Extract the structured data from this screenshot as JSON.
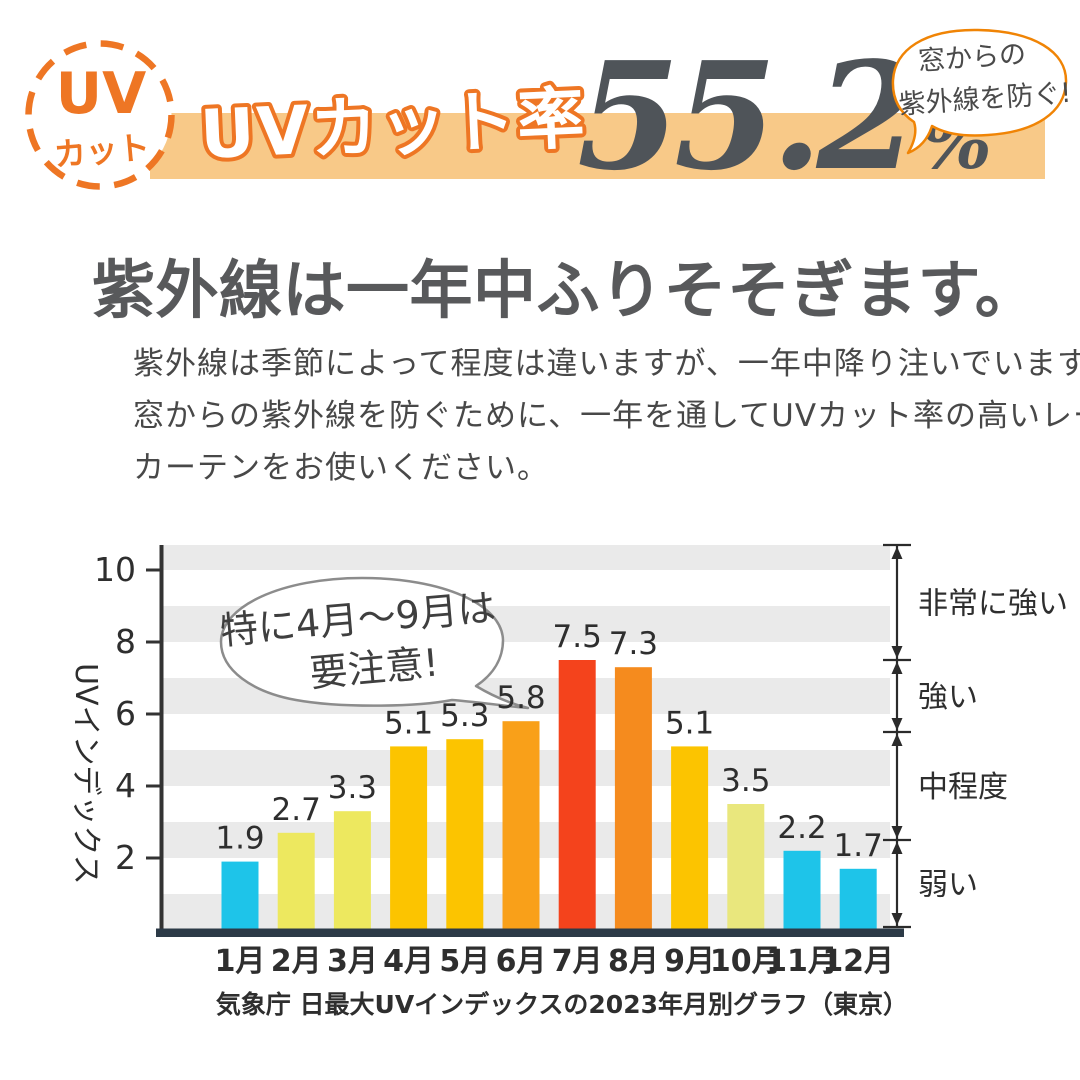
{
  "header": {
    "badge": {
      "line1": "UV",
      "line2": "カット"
    },
    "band_label": "UVカット率",
    "percent_value": "55.2",
    "percent_unit": "%",
    "bubble_lines": [
      "窓からの",
      "紫外線を防ぐ!"
    ]
  },
  "heading": "紫外線は一年中ふりそそぎます。",
  "paragraph_lines": [
    "紫外線は季節によって程度は違いますが、一年中降り注いでいます。",
    "窓からの紫外線を防ぐために、一年を通してUVカット率の高いレース",
    "カーテンをお使いください。"
  ],
  "chart_data": {
    "type": "bar",
    "categories": [
      "1月",
      "2月",
      "3月",
      "4月",
      "5月",
      "6月",
      "7月",
      "8月",
      "9月",
      "10月",
      "11月",
      "12月"
    ],
    "values": [
      1.9,
      2.7,
      3.3,
      5.1,
      5.3,
      5.8,
      7.5,
      7.3,
      5.1,
      3.5,
      2.2,
      1.7
    ],
    "bar_colors": [
      "#1EC4E9",
      "#EDE85F",
      "#EDE85F",
      "#FCC400",
      "#FCC400",
      "#F9A019",
      "#F4431C",
      "#F58B1E",
      "#FCC400",
      "#E9E77D",
      "#1EC4E9",
      "#1EC4E9"
    ],
    "ylabel": "UVインデックス",
    "yticks": [
      2,
      4,
      6,
      8,
      10
    ],
    "ylim": [
      0,
      10.7
    ],
    "grid": "horizontal-stripes",
    "legend": "none",
    "annotation": {
      "lines": [
        "特に4月〜9月は",
        "要注意!"
      ]
    },
    "right_scale": {
      "segments": [
        {
          "label": "非常に強い",
          "from": 7.5,
          "to": 10.7
        },
        {
          "label": "強い",
          "from": 5.5,
          "to": 7.5
        },
        {
          "label": "中程度",
          "from": 2.5,
          "to": 5.5
        },
        {
          "label": "弱い",
          "from": 0,
          "to": 2.5
        }
      ]
    },
    "caption": "気象庁 日最大UVインデックスの2023年月別グラフ（東京）"
  },
  "colors": {
    "brand_orange": "#EE7624",
    "band_bg": "#F8C988",
    "percent_gray": "#4F5459",
    "heading_gray": "#58595B",
    "body_gray": "#484848",
    "axis_navy": "#2C3A47",
    "stripe_gray": "#EAEAEA",
    "bubble_stroke_gray": "#8C8C8C",
    "mini_bubble_stroke": "#F08405",
    "label_ink": "#2E2E2E"
  }
}
